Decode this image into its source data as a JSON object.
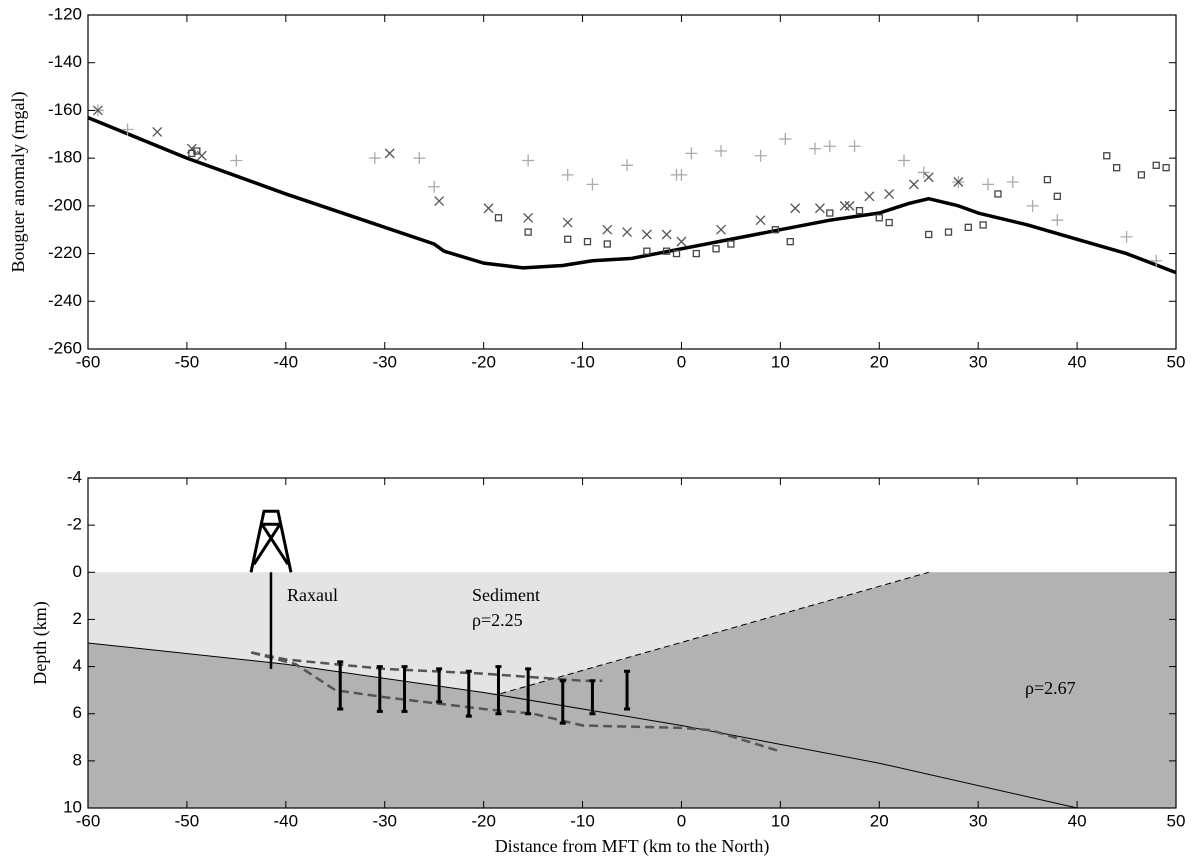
{
  "chart_data": [
    {
      "type": "scatter",
      "ylabel": "Bouguer anomaly (mgal)",
      "xlim": [
        -60,
        50
      ],
      "xticks": [
        -60,
        -50,
        -40,
        -30,
        -20,
        -10,
        0,
        10,
        20,
        30,
        40,
        50
      ],
      "ylim": [
        -260,
        -120
      ],
      "yticks": [
        -260,
        -240,
        -220,
        -200,
        -180,
        -160,
        -140,
        -120
      ],
      "series": [
        {
          "marker": "line",
          "color": "#000000",
          "x": [
            -60,
            -50,
            -40,
            -30,
            -25,
            -24,
            -20,
            -16,
            -12,
            -9,
            -5,
            0,
            5,
            10,
            15,
            20,
            23,
            25,
            28,
            30,
            35,
            40,
            45,
            50
          ],
          "y": [
            -163,
            -180,
            -195,
            -209,
            -216,
            -219,
            -224,
            -226,
            -225,
            -223,
            -222,
            -218,
            -214,
            -210,
            -206,
            -203,
            -199,
            -197,
            -200,
            -203,
            -208,
            -214,
            -220,
            -228
          ]
        },
        {
          "marker": "plus",
          "color": "#aaaaaa",
          "x": [
            -59,
            -56,
            -45,
            -31,
            -26.5,
            -25,
            -15.5,
            -11.5,
            -9,
            -5.5,
            -0.5,
            0,
            1,
            4,
            8,
            10.5,
            13.5,
            15,
            17.5,
            22.5,
            24.5,
            28,
            31,
            33.5,
            35.5,
            38,
            45,
            48
          ],
          "y": [
            -160,
            -168,
            -181,
            -180,
            -180,
            -192,
            -181,
            -187,
            -191,
            -183,
            -187,
            -187,
            -178,
            -177,
            -179,
            -172,
            -176,
            -175,
            -175,
            -181,
            -186,
            -190,
            -191,
            -190,
            -200,
            -206,
            -213,
            -223
          ]
        },
        {
          "marker": "cross",
          "color": "#555555",
          "x": [
            -59,
            -53,
            -49.5,
            -48.5,
            -29.5,
            -24.5,
            -19.5,
            -15.5,
            -11.5,
            -7.5,
            -5.5,
            -3.5,
            -1.5,
            0,
            4,
            8,
            11.5,
            14,
            16.5,
            17,
            19,
            21,
            23.5,
            25,
            28
          ],
          "y": [
            -160,
            -169,
            -176,
            -179,
            -178,
            -198,
            -201,
            -205,
            -207,
            -210,
            -211,
            -212,
            -212,
            -215,
            -210,
            -206,
            -201,
            -201,
            -200,
            -200,
            -196,
            -195,
            -191,
            -188,
            -190
          ]
        },
        {
          "marker": "square",
          "color": "#444444",
          "x": [
            -49.5,
            -49,
            -18.5,
            -15.5,
            -11.5,
            -9.5,
            -7.5,
            -3.5,
            -1.5,
            -0.5,
            1.5,
            3.5,
            5,
            9.5,
            11,
            15,
            18,
            20,
            21,
            25,
            27,
            29,
            30.5,
            32,
            37,
            38,
            43,
            44,
            46.5,
            48,
            49
          ],
          "y": [
            -178,
            -177,
            -205,
            -211,
            -214,
            -215,
            -216,
            -219,
            -219,
            -220,
            -220,
            -218,
            -216,
            -210,
            -215,
            -203,
            -202,
            -205,
            -207,
            -212,
            -211,
            -209,
            -208,
            -195,
            -189,
            -196,
            -179,
            -184,
            -187,
            -183,
            -184
          ]
        }
      ]
    },
    {
      "type": "section",
      "ylabel": "Depth (km)",
      "xlabel": "Distance from MFT (km to the North)",
      "xlim": [
        -60,
        50
      ],
      "xticks": [
        -60,
        -50,
        -40,
        -30,
        -20,
        -10,
        0,
        10,
        20,
        30,
        40,
        50
      ],
      "ylim": [
        10,
        -4
      ],
      "yticks": [
        -4,
        -2,
        0,
        2,
        4,
        6,
        8,
        10
      ],
      "sediment_color": "#e4e4e4",
      "basement_color": "#b2b2b2",
      "basement_top": {
        "x": [
          -60,
          -40,
          -20,
          0,
          20,
          40
        ],
        "y": [
          3,
          3.9,
          5.1,
          6.5,
          8.1,
          10
        ]
      },
      "sediment_edge": {
        "x": [
          -18.3,
          25
        ],
        "y": [
          5.15,
          0
        ]
      },
      "profiles": [
        {
          "color": "#555555",
          "x": [
            -43.5,
            -40,
            -35,
            -30,
            -20,
            -10,
            -8
          ],
          "y": [
            3.4,
            3.7,
            3.9,
            4.1,
            4.3,
            4.6,
            4.6
          ]
        },
        {
          "color": "#555555",
          "x": [
            -43.5,
            -39,
            -35,
            -30,
            -20,
            -15,
            -10,
            0,
            3,
            10
          ],
          "y": [
            3.4,
            3.9,
            5.0,
            5.3,
            5.8,
            6.0,
            6.5,
            6.6,
            6.7,
            7.6
          ]
        }
      ],
      "error_bars": {
        "x": [
          -34.5,
          -30.5,
          -28,
          -24.5,
          -21.5,
          -18.5,
          -15.5,
          -12,
          -9,
          -5.5
        ],
        "top": [
          3.8,
          4.0,
          4.0,
          4.1,
          4.2,
          4.0,
          4.1,
          4.6,
          4.6,
          4.2
        ],
        "bottom": [
          5.8,
          5.9,
          5.9,
          5.5,
          6.1,
          6.0,
          6.0,
          6.4,
          6.0,
          5.8
        ]
      },
      "well": {
        "label": "Raxaul",
        "x": -41.5,
        "top": 0,
        "bottom": 4.1
      },
      "annotations": [
        "Sediment",
        "ρ=2.25",
        "ρ=2.67"
      ]
    }
  ]
}
